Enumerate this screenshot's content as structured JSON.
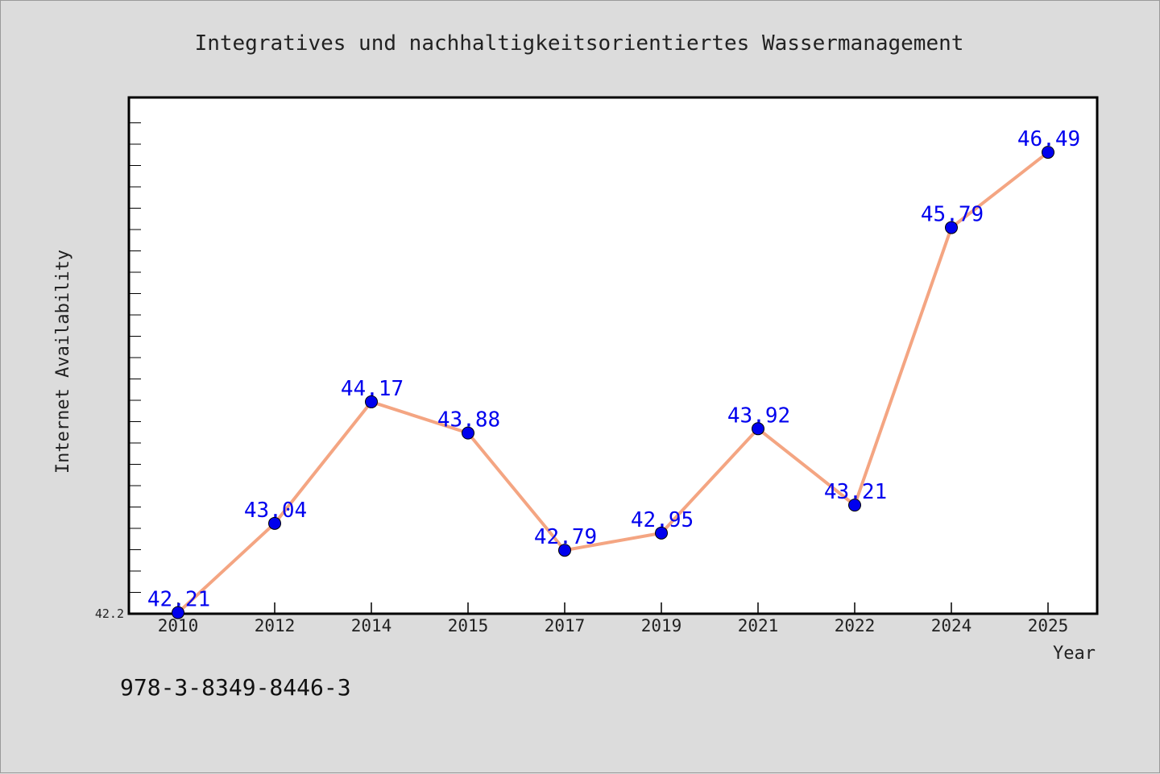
{
  "footer": {
    "isbn": "978-3-8349-8446-3"
  },
  "chart_data": {
    "type": "line",
    "title": "Integratives und nachhaltigkeitsorientiertes Wassermanagement",
    "xlabel": "Year",
    "ylabel": "Internet Availability",
    "categories": [
      "2010",
      "2012",
      "2014",
      "2015",
      "2017",
      "2019",
      "2021",
      "2022",
      "2024",
      "2025"
    ],
    "series": [
      {
        "values": [
          42.21,
          43.04,
          44.17,
          43.88,
          42.79,
          42.95,
          43.92,
          43.21,
          45.79,
          46.49
        ],
        "labels": [
          "42.21",
          "43.04",
          "44.17",
          "43.88",
          "42.79",
          "42.95",
          "43.92",
          "43.21",
          "45.79",
          "46.49"
        ]
      }
    ],
    "yticks": [
      "42.2"
    ],
    "ylim": [
      42.2,
      47.0
    ],
    "grid": false,
    "colors": {
      "line": "#f4a582",
      "marker": "#0000ee",
      "label": "#0000ee",
      "plot_bg": "#ffffff",
      "page_bg": "#dcdcdc"
    }
  }
}
